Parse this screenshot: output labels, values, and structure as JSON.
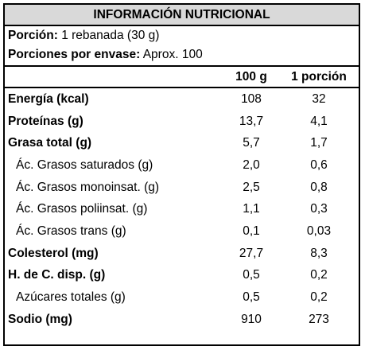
{
  "title": "INFORMACIÓN NUTRICIONAL",
  "portion": {
    "label": "Porción:",
    "value": "1 rebanada (30 g)"
  },
  "servings": {
    "label": "Porciones por envase:",
    "value": "Aprox. 100"
  },
  "columns": {
    "per100": "100 g",
    "perPortion": "1 porción"
  },
  "rows": [
    {
      "name": "Energía (kcal)",
      "v100": "108",
      "vPortion": "32",
      "bold": true,
      "sub": false
    },
    {
      "name": "Proteínas (g)",
      "v100": "13,7",
      "vPortion": "4,1",
      "bold": true,
      "sub": false
    },
    {
      "name": "Grasa total (g)",
      "v100": "5,7",
      "vPortion": "1,7",
      "bold": true,
      "sub": false
    },
    {
      "name": "Ác. Grasos saturados (g)",
      "v100": "2,0",
      "vPortion": "0,6",
      "bold": false,
      "sub": true
    },
    {
      "name": "Ác. Grasos monoinsat. (g)",
      "v100": "2,5",
      "vPortion": "0,8",
      "bold": false,
      "sub": true
    },
    {
      "name": "Ác. Grasos poliinsat. (g)",
      "v100": "1,1",
      "vPortion": "0,3",
      "bold": false,
      "sub": true
    },
    {
      "name": "Ác. Grasos trans (g)",
      "v100": "0,1",
      "vPortion": "0,03",
      "bold": false,
      "sub": true
    },
    {
      "name": "Colesterol (mg)",
      "v100": "27,7",
      "vPortion": "8,3",
      "bold": true,
      "sub": false
    },
    {
      "name": "H. de C. disp. (g)",
      "v100": "0,5",
      "vPortion": "0,2",
      "bold": true,
      "sub": false
    },
    {
      "name": "Azúcares totales (g)",
      "v100": "0,5",
      "vPortion": "0,2",
      "bold": false,
      "sub": true
    },
    {
      "name": "Sodio (mg)",
      "v100": "910",
      "vPortion": "273",
      "bold": true,
      "sub": false
    }
  ]
}
